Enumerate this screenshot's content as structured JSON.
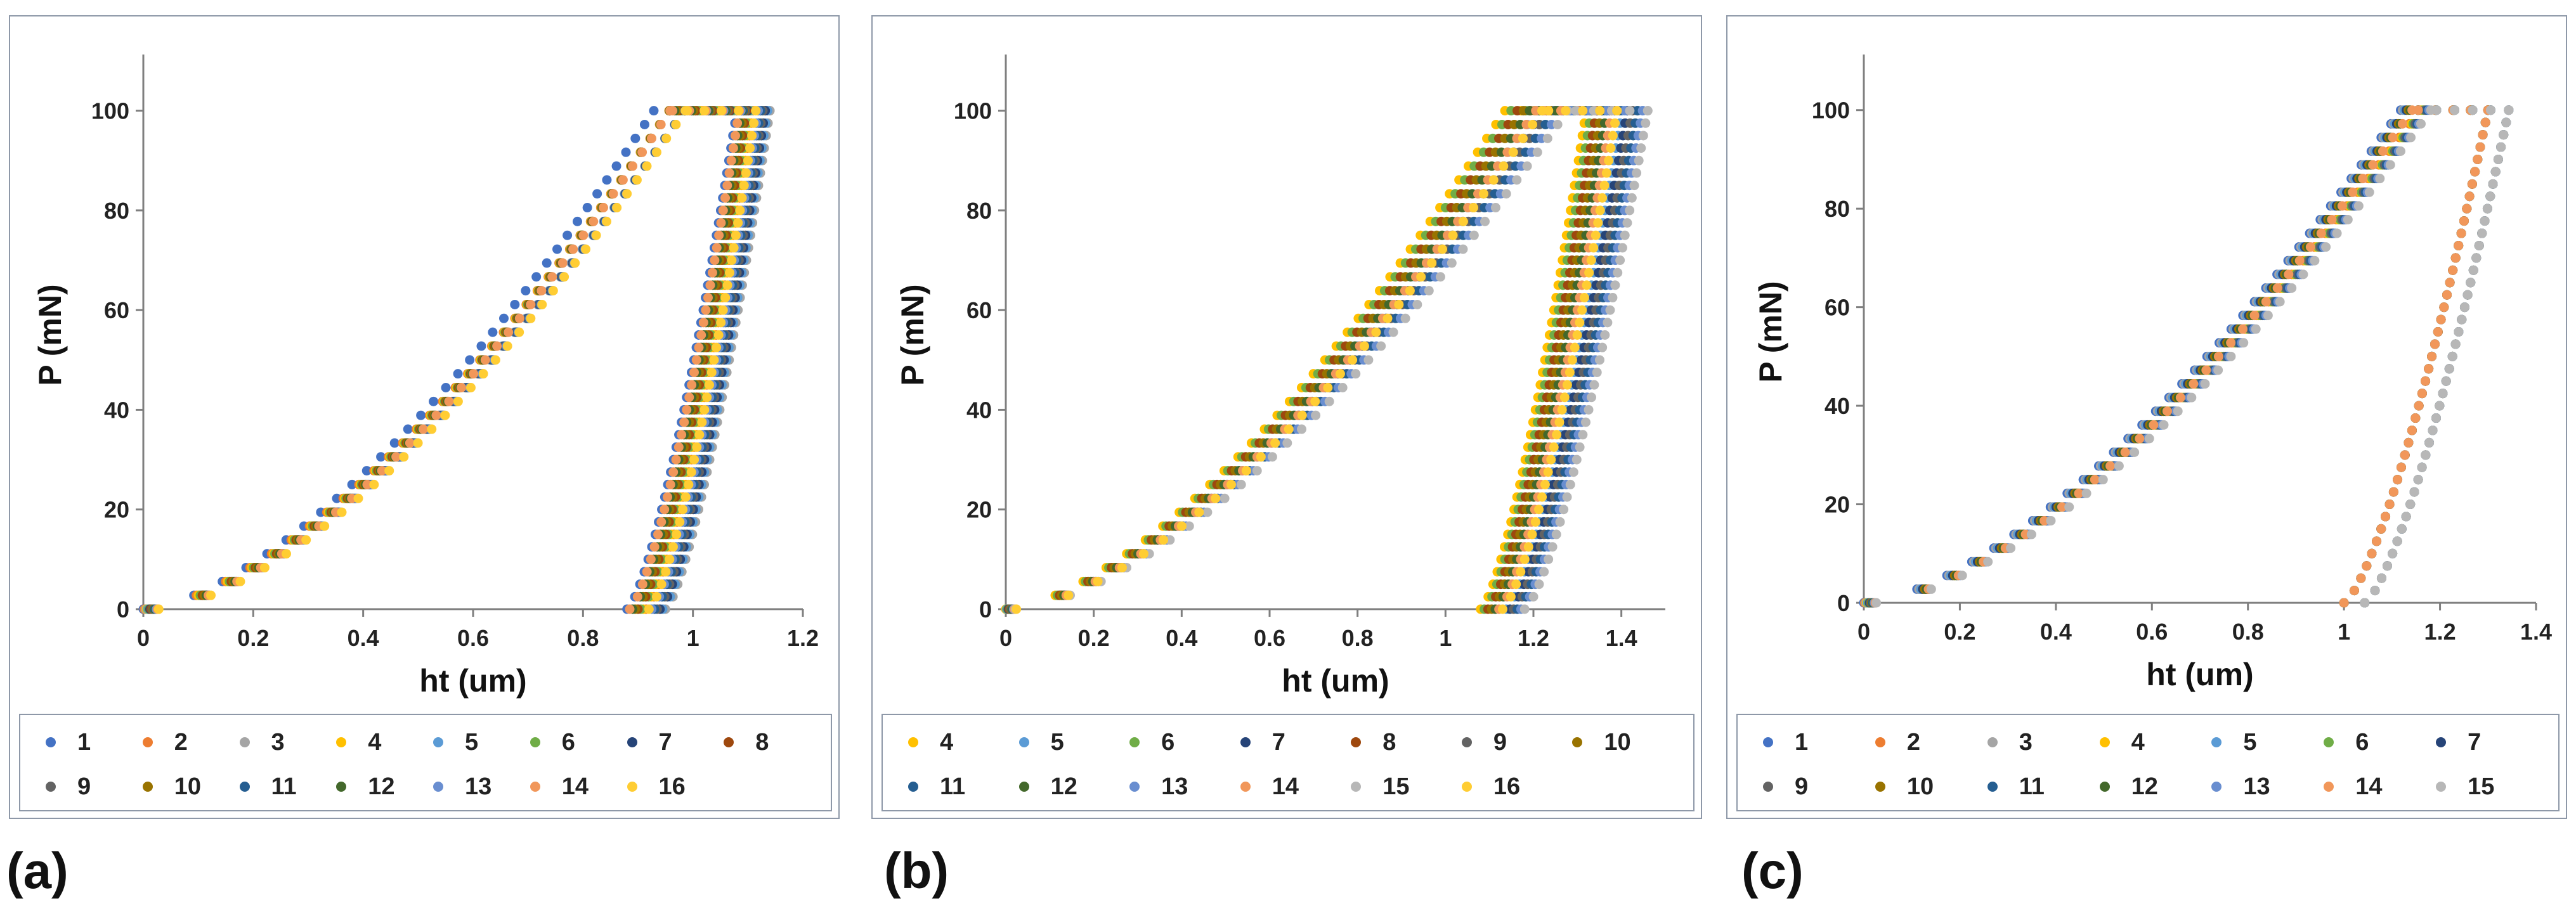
{
  "colors": {
    "1": "#4472C4",
    "2": "#ED7D31",
    "3": "#A5A5A5",
    "4": "#FFC000",
    "5": "#5B9BD5",
    "6": "#70AD47",
    "7": "#264478",
    "8": "#9E480E",
    "9": "#636363",
    "10": "#997300",
    "11": "#255E91",
    "12": "#43682B",
    "13": "#698ED0",
    "14": "#F1975A",
    "15": "#B7B7B7",
    "16": "#FFCD33"
  },
  "panel_labels": [
    "(a)",
    "(b)",
    "(c)"
  ],
  "chart_data": [
    {
      "type": "scatter",
      "title": "",
      "xlabel": "ht (um)",
      "ylabel": "P (mN)",
      "xlim": [
        0,
        1.2
      ],
      "ylim": [
        0,
        110
      ],
      "xticks": [
        "0",
        "0.2",
        "0.4",
        "0.6",
        "0.8",
        "1",
        "1.2"
      ],
      "yticks": [
        "0",
        "20",
        "40",
        "60",
        "80",
        "100"
      ],
      "legend_position": "bottom",
      "legend_rows": [
        [
          "1",
          "2",
          "3",
          "4",
          "5",
          "6",
          "7",
          "8"
        ],
        [
          "9",
          "10",
          "11",
          "12",
          "13",
          "14",
          "16"
        ]
      ],
      "loading_peak_h": [
        1.08,
        1.14
      ],
      "unloading_end_h": [
        0.88,
        0.95
      ],
      "max_load": 100,
      "series": [
        {
          "name": "1",
          "color_key": "1"
        },
        {
          "name": "2",
          "color_key": "2"
        },
        {
          "name": "3",
          "color_key": "3"
        },
        {
          "name": "4",
          "color_key": "4"
        },
        {
          "name": "5",
          "color_key": "5"
        },
        {
          "name": "6",
          "color_key": "6"
        },
        {
          "name": "7",
          "color_key": "7"
        },
        {
          "name": "8",
          "color_key": "8"
        },
        {
          "name": "9",
          "color_key": "9"
        },
        {
          "name": "10",
          "color_key": "10"
        },
        {
          "name": "11",
          "color_key": "11"
        },
        {
          "name": "12",
          "color_key": "12"
        },
        {
          "name": "13",
          "color_key": "13"
        },
        {
          "name": "14",
          "color_key": "14"
        },
        {
          "name": "16",
          "color_key": "16"
        }
      ]
    },
    {
      "type": "scatter",
      "title": "",
      "xlabel": "ht (um)",
      "ylabel": "P (mN)",
      "xlim": [
        0,
        1.5
      ],
      "ylim": [
        0,
        110
      ],
      "xticks": [
        "0",
        "0.2",
        "0.4",
        "0.6",
        "0.8",
        "1",
        "1.2",
        "1.4"
      ],
      "yticks": [
        "0",
        "20",
        "40",
        "60",
        "80",
        "100"
      ],
      "legend_position": "bottom",
      "legend_rows": [
        [
          "4",
          "5",
          "6",
          "7",
          "8",
          "9",
          "10"
        ],
        [
          "11",
          "12",
          "13",
          "14",
          "15",
          "16"
        ]
      ],
      "loading_peak_h": [
        1.32,
        1.46
      ],
      "unloading_end_h": [
        1.08,
        1.18
      ],
      "max_load": 100,
      "series": [
        {
          "name": "4",
          "color_key": "4"
        },
        {
          "name": "5",
          "color_key": "5"
        },
        {
          "name": "6",
          "color_key": "6"
        },
        {
          "name": "7",
          "color_key": "7"
        },
        {
          "name": "8",
          "color_key": "8"
        },
        {
          "name": "9",
          "color_key": "9"
        },
        {
          "name": "10",
          "color_key": "10"
        },
        {
          "name": "11",
          "color_key": "11"
        },
        {
          "name": "12",
          "color_key": "12"
        },
        {
          "name": "13",
          "color_key": "13"
        },
        {
          "name": "14",
          "color_key": "14"
        },
        {
          "name": "15",
          "color_key": "15"
        },
        {
          "name": "16",
          "color_key": "16"
        }
      ]
    },
    {
      "type": "scatter",
      "title": "",
      "xlabel": "ht (um)",
      "ylabel": "P (mN)",
      "xlim": [
        0,
        1.4
      ],
      "ylim": [
        0,
        110
      ],
      "xticks": [
        "0",
        "0.2",
        "0.4",
        "0.6",
        "0.8",
        "1",
        "1.2",
        "1.4"
      ],
      "yticks": [
        "0",
        "20",
        "40",
        "60",
        "80",
        "100"
      ],
      "legend_position": "bottom",
      "legend_rows": [
        [
          "1",
          "2",
          "3",
          "4",
          "5",
          "6",
          "7"
        ],
        [
          "9",
          "10",
          "11",
          "12",
          "13",
          "14",
          "15"
        ]
      ],
      "loading_peak_h": [
        1.3,
        1.38
      ],
      "unloading_end_h": [
        1.0,
        1.08
      ],
      "max_load": 100,
      "series": [
        {
          "name": "1",
          "color_key": "1"
        },
        {
          "name": "2",
          "color_key": "2"
        },
        {
          "name": "3",
          "color_key": "3"
        },
        {
          "name": "4",
          "color_key": "4"
        },
        {
          "name": "5",
          "color_key": "5"
        },
        {
          "name": "6",
          "color_key": "6"
        },
        {
          "name": "7",
          "color_key": "7"
        },
        {
          "name": "9",
          "color_key": "9"
        },
        {
          "name": "10",
          "color_key": "10"
        },
        {
          "name": "11",
          "color_key": "11"
        },
        {
          "name": "12",
          "color_key": "12"
        },
        {
          "name": "13",
          "color_key": "13"
        },
        {
          "name": "14",
          "color_key": "14"
        },
        {
          "name": "15",
          "color_key": "15"
        }
      ]
    }
  ]
}
